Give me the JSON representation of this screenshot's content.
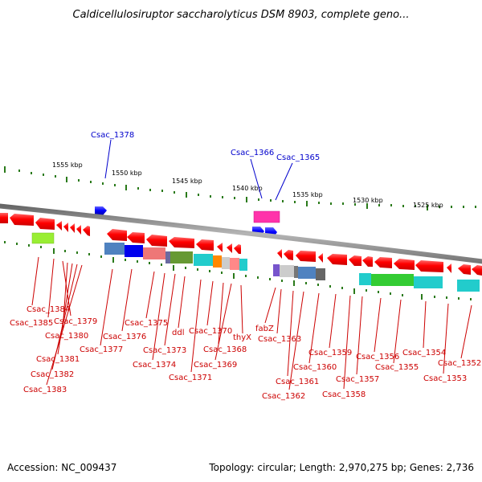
{
  "title": "Caldicellulosiruptor saccharolyticus DSM 8903, complete geno...",
  "footer": {
    "accession": "Accession: NC_009437",
    "topology": "Topology: circular; Length: 2,970,275 bp; Genes: 2,736"
  },
  "colors": {
    "backbone": "#888888",
    "tick": "#2a7a1a",
    "reverse_gene": "#ff0000",
    "forward_gene": "#0000ff",
    "label_reverse": "#cc0000",
    "label_forward": "#0000cc"
  },
  "ruler": [
    "1555 kbp",
    "1550 kbp",
    "1545 kbp",
    "1540 kbp",
    "1535 kbp",
    "1530 kbp",
    "1525 kbp"
  ],
  "labels_forward": [
    "Csac_1378",
    "Csac_1366",
    "Csac_1365"
  ],
  "labels_reverse": [
    "Csac_1384",
    "Csac_1385",
    "Csac_1379",
    "Csac_1380",
    "Csac_1381",
    "Csac_1382",
    "Csac_1383",
    "Csac_1376",
    "Csac_1377",
    "Csac_1375",
    "Csac_1373",
    "Csac_1374",
    "ddl",
    "Csac_1370",
    "Csac_1371",
    "Csac_1368",
    "Csac_1369",
    "thyX",
    "fabZ",
    "Csac_1363",
    "Csac_1361",
    "Csac_1362",
    "Csac_1360",
    "Csac_1359",
    "Csac_1358",
    "Csac_1357",
    "Csac_1356",
    "Csac_1355",
    "Csac_1354",
    "Csac_1353",
    "Csac_1352"
  ]
}
